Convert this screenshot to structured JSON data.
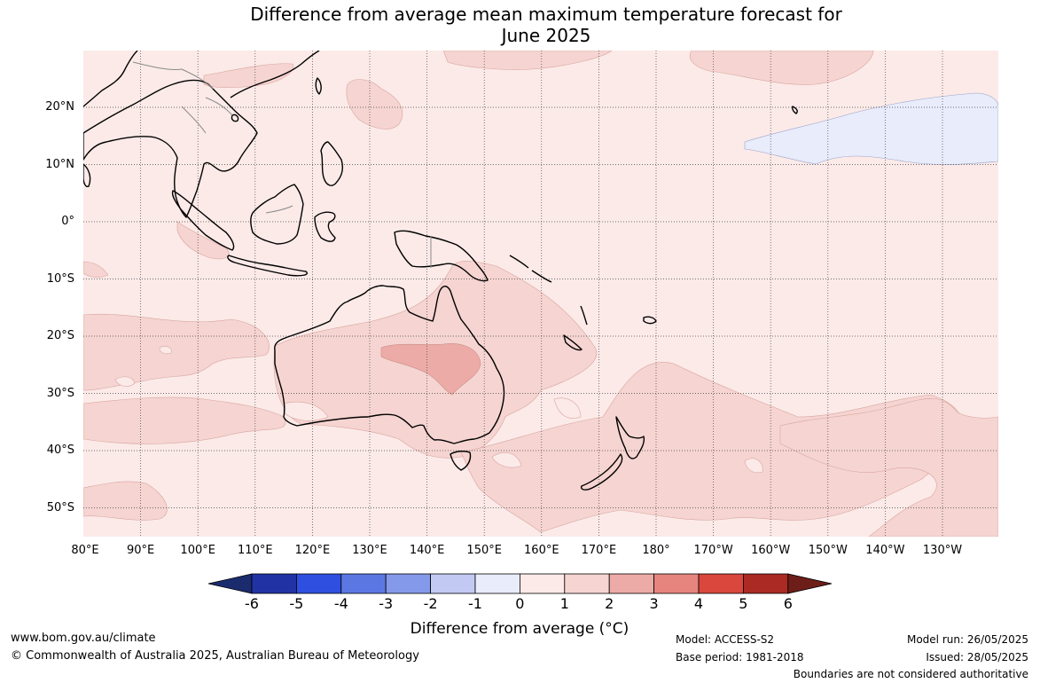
{
  "title": {
    "line1": "Difference from average mean maximum temperature forecast for",
    "line2": "June 2025"
  },
  "map": {
    "region": "Australia, Indonesia and the western Pacific",
    "longitude_labels": [
      "80°E",
      "90°E",
      "100°E",
      "110°E",
      "120°E",
      "130°E",
      "140°E",
      "150°E",
      "160°E",
      "170°E",
      "180°",
      "170°W",
      "160°W",
      "150°W",
      "140°W",
      "130°W"
    ],
    "latitude_labels": [
      "20°N",
      "10°N",
      "0°",
      "10°S",
      "20°S",
      "30°S",
      "40°S",
      "50°S"
    ],
    "field_colors": {
      "background_0_to_1": "#fbeae8",
      "band_1_to_2": "#f5d4d1",
      "band_2_to_3": "#ecaba7",
      "band_minus1_to_0": "#e8ecfb"
    },
    "coastline_color": "#000000",
    "boundary_color": "#8a8a8a"
  },
  "colorbar": {
    "label": "Difference from average (°C)",
    "ticks": [
      "-6",
      "-5",
      "-4",
      "-3",
      "-2",
      "-1",
      "0",
      "1",
      "2",
      "3",
      "4",
      "5",
      "6"
    ],
    "low_extend_color": "#1a2c6e",
    "high_extend_color": "#6e1e18",
    "colors": [
      "#2133a4",
      "#2e4fe0",
      "#5b78e2",
      "#8599ea",
      "#c2c9f2",
      "#e8ecfb",
      "#fbeae8",
      "#f5d4d1",
      "#ecaba7",
      "#e5857d",
      "#d9473d",
      "#ab2a23"
    ]
  },
  "footer": {
    "website": "www.bom.gov.au/climate",
    "copyright": "© Commonwealth of Australia 2025, Australian Bureau of Meteorology",
    "model": "Model: ACCESS-S2",
    "base_period": "Base period: 1981-2018",
    "model_run": "Model run: 26/05/2025",
    "issued": "Issued: 28/05/2025",
    "disclaimer": "Boundaries are not considered authoritative"
  }
}
